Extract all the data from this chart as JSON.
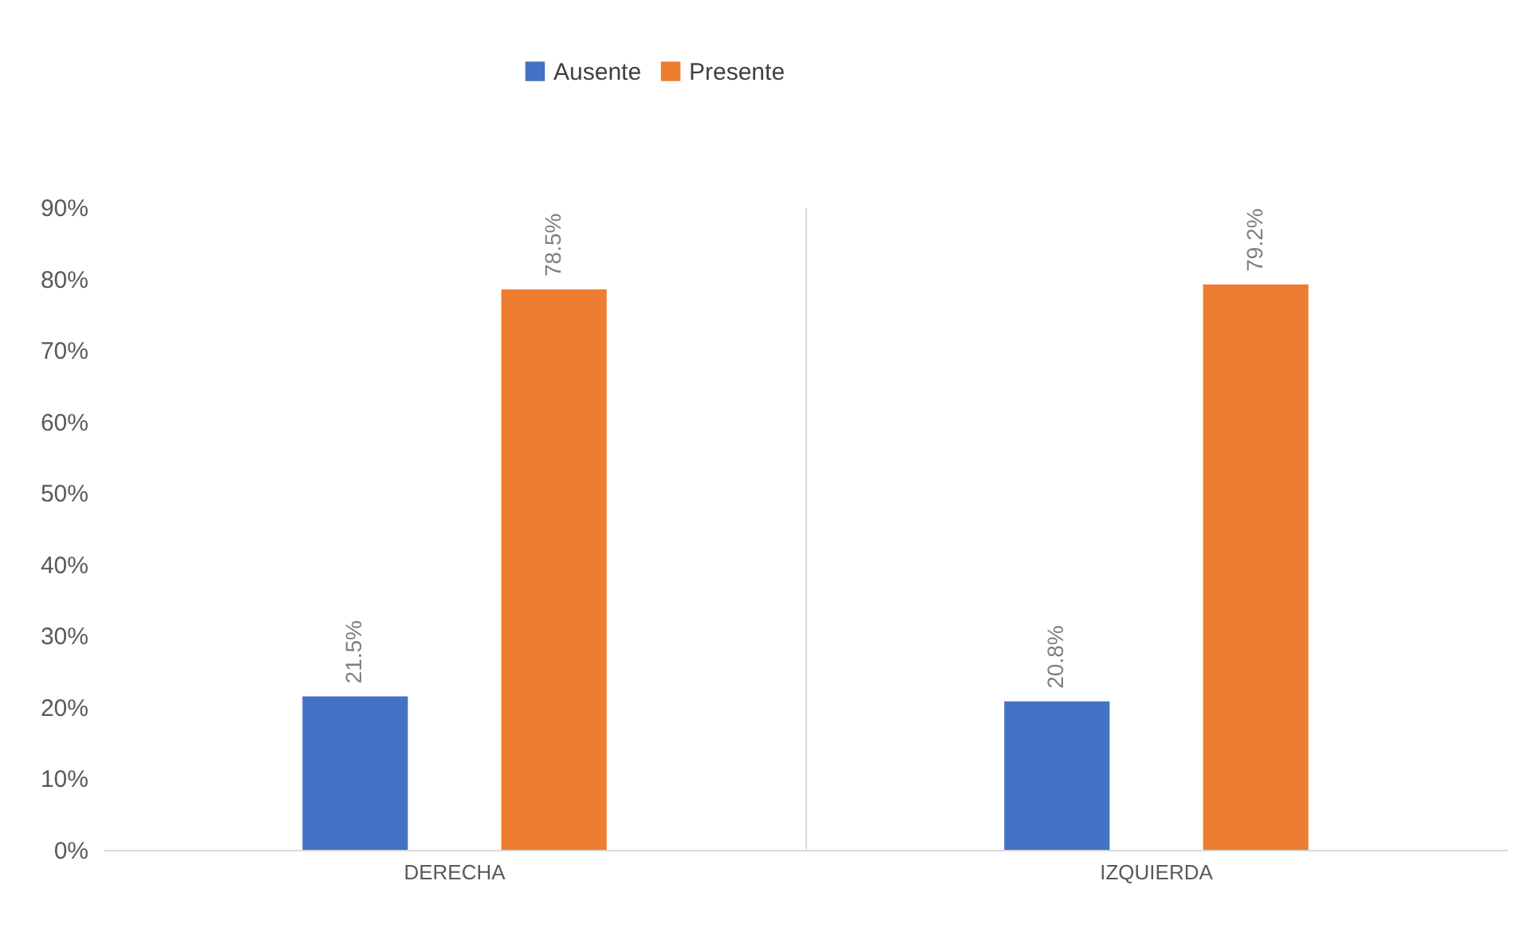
{
  "chart_data": {
    "type": "bar",
    "categories": [
      "DERECHA",
      "IZQUIERDA"
    ],
    "series": [
      {
        "name": "Ausente",
        "color": "#4472c4",
        "values": [
          21.5,
          20.8
        ],
        "value_labels": [
          "21.5%",
          "20.8%"
        ]
      },
      {
        "name": "Presente",
        "color": "#ed7d31",
        "values": [
          78.5,
          79.2
        ],
        "value_labels": [
          "78.5%",
          "79.2%"
        ]
      }
    ],
    "ylim": [
      0,
      90
    ],
    "yticks": [
      {
        "value": 0,
        "label": "0%"
      },
      {
        "value": 10,
        "label": "10%"
      },
      {
        "value": 20,
        "label": "20%"
      },
      {
        "value": 30,
        "label": "30%"
      },
      {
        "value": 40,
        "label": "40%"
      },
      {
        "value": 50,
        "label": "50%"
      },
      {
        "value": 60,
        "label": "60%"
      },
      {
        "value": 70,
        "label": "70%"
      },
      {
        "value": 80,
        "label": "80%"
      },
      {
        "value": 90,
        "label": "90%"
      }
    ],
    "grid": "x",
    "legend": "top"
  }
}
